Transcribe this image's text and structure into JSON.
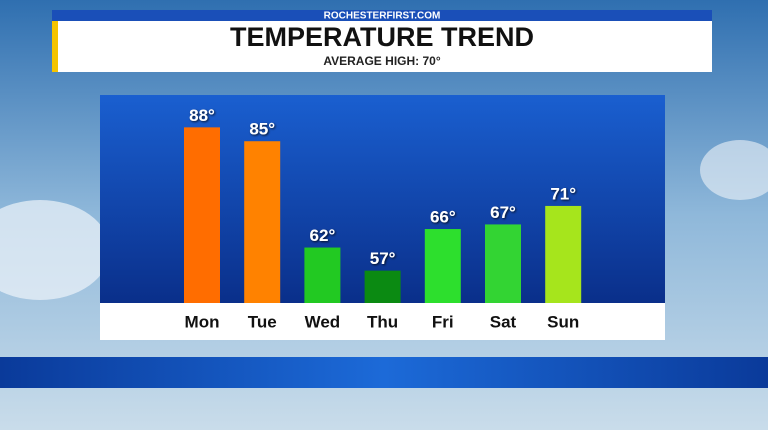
{
  "chart_data": {
    "type": "bar",
    "source": "ROCHESTERFIRST.COM",
    "title": "TEMPERATURE TREND",
    "subtitle": "AVERAGE HIGH: 70°",
    "categories": [
      "Mon",
      "Tue",
      "Wed",
      "Thu",
      "Fri",
      "Sat",
      "Sun"
    ],
    "values": [
      88,
      85,
      62,
      57,
      66,
      67,
      71
    ],
    "value_labels": [
      "88°",
      "85°",
      "62°",
      "57°",
      "66°",
      "67°",
      "71°"
    ],
    "colors": [
      "#ff6d00",
      "#ff8200",
      "#22c922",
      "#0b8a12",
      "#2ddf2d",
      "#33d433",
      "#a6e51c"
    ],
    "ylim": [
      50,
      95
    ]
  }
}
